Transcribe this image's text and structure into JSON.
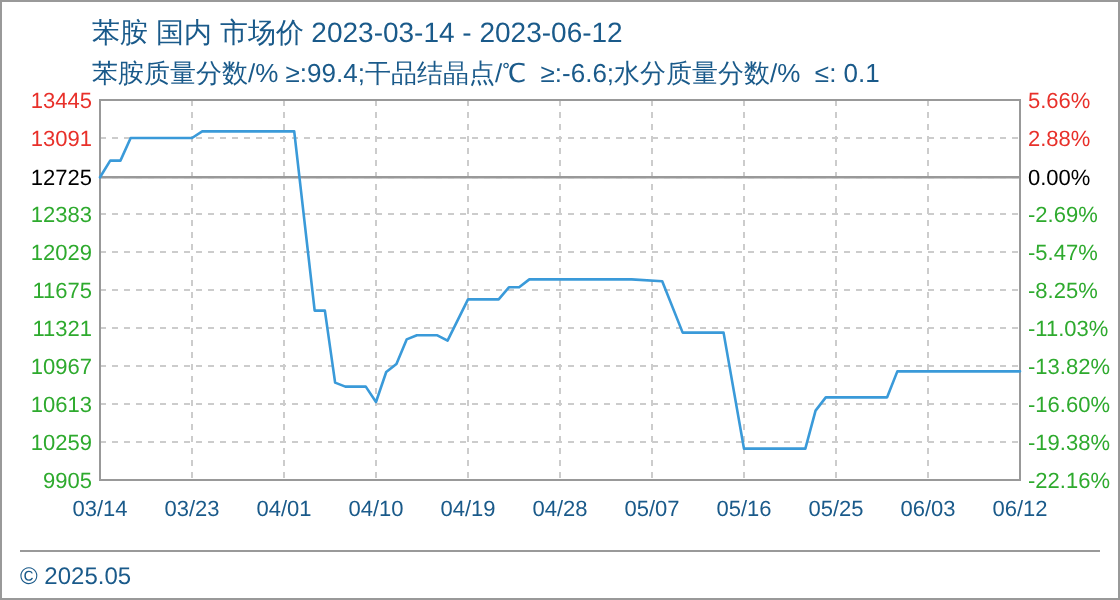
{
  "chart_data": {
    "type": "line",
    "title": "苯胺 国内 市场价 2023-03-14 - 2023-06-12",
    "subtitle": "苯胺质量分数/% ≥:99.4;干品结晶点/℃  ≥:-6.6;水分质量分数/%  ≤: 0.1",
    "annotations": [
      "© 2025.05"
    ],
    "x": [
      "2023-03-14",
      "2023-03-15",
      "2023-03-16",
      "2023-03-17",
      "2023-03-23",
      "2023-03-24",
      "2023-04-02",
      "2023-04-04",
      "2023-04-05",
      "2023-04-06",
      "2023-04-07",
      "2023-04-09",
      "2023-04-10",
      "2023-04-11",
      "2023-04-12",
      "2023-04-13",
      "2023-04-14",
      "2023-04-16",
      "2023-04-17",
      "2023-04-19",
      "2023-04-22",
      "2023-04-23",
      "2023-04-24",
      "2023-04-25",
      "2023-05-05",
      "2023-05-08",
      "2023-05-10",
      "2023-05-14",
      "2023-05-16",
      "2023-05-22",
      "2023-05-23",
      "2023-05-24",
      "2023-05-30",
      "2023-05-31",
      "2023-06-12"
    ],
    "series": [
      {
        "color": "#3a9ad9",
        "values": [
          12725,
          12880,
          12880,
          13091,
          13091,
          13153,
          13153,
          11483,
          11483,
          10812,
          10775,
          10775,
          10632,
          10911,
          10986,
          11215,
          11253,
          11253,
          11203,
          11588,
          11588,
          11700,
          11700,
          11774,
          11774,
          11756,
          11278,
          11278,
          10197,
          10197,
          10551,
          10675,
          10675,
          10917,
          10917
        ]
      }
    ],
    "xlim": [
      "2023-03-14",
      "2023-06-12"
    ],
    "xticks": [
      {
        "value": "2023-03-14",
        "label": "03/14"
      },
      {
        "value": "2023-03-23",
        "label": "03/23"
      },
      {
        "value": "2023-04-01",
        "label": "04/01"
      },
      {
        "value": "2023-04-10",
        "label": "04/10"
      },
      {
        "value": "2023-04-19",
        "label": "04/19"
      },
      {
        "value": "2023-04-28",
        "label": "04/28"
      },
      {
        "value": "2023-05-07",
        "label": "05/07"
      },
      {
        "value": "2023-05-16",
        "label": "05/16"
      },
      {
        "value": "2023-05-25",
        "label": "05/25"
      },
      {
        "value": "2023-06-03",
        "label": "06/03"
      },
      {
        "value": "2023-06-12",
        "label": "06/12"
      }
    ],
    "ylim": [
      9905,
      13445
    ],
    "yticks": [
      9905,
      10259,
      10613,
      10967,
      11321,
      11675,
      12029,
      12383,
      12725,
      13091,
      13445
    ],
    "y2lim": [
      -22.16,
      5.66
    ],
    "y2ticks": [
      {
        "value": -22.16,
        "label": "-22.16%"
      },
      {
        "value": -19.38,
        "label": "-19.38%"
      },
      {
        "value": -16.6,
        "label": "-16.60%"
      },
      {
        "value": -13.82,
        "label": "-13.82%"
      },
      {
        "value": -11.03,
        "label": "-11.03%"
      },
      {
        "value": -8.25,
        "label": "-8.25%"
      },
      {
        "value": -5.47,
        "label": "-5.47%"
      },
      {
        "value": -2.69,
        "label": "-2.69%"
      },
      {
        "value": 0,
        "label": "0.00%"
      },
      {
        "value": 2.88,
        "label": "2.88%"
      },
      {
        "value": 5.66,
        "label": "5.66%"
      }
    ],
    "ref_lines": [
      {
        "axis": "y",
        "value": 12725,
        "color": "#999999"
      }
    ],
    "grid": true,
    "line_style": "solid",
    "marker": "none"
  }
}
